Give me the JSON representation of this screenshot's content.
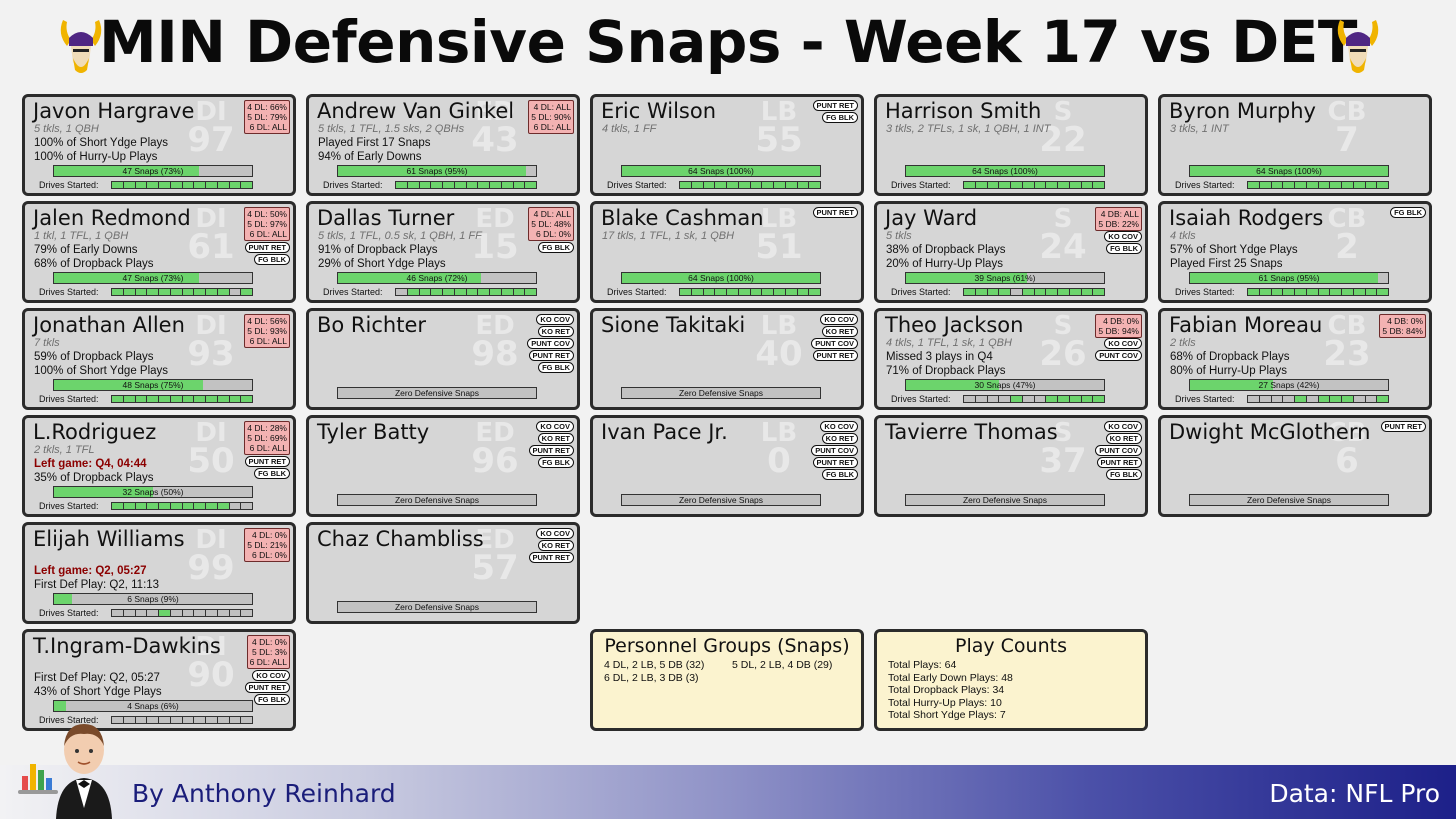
{
  "title": "MIN Defensive Snaps - Week 17 vs DET",
  "footer": {
    "author": "By Anthony Reinhard",
    "source": "Data: NFL Pro"
  },
  "icons": {
    "logo": "vikings-logo-icon",
    "mascot": "butler-chart-mascot-icon"
  },
  "colors": {
    "snap_fill": "#6cd46c",
    "pct_box": "#f3b2b2",
    "card_bg": "#d6d6d6",
    "info_bg": "#fbf3cf",
    "left_game": "#8b0000"
  },
  "players": [
    {
      "name": "Javon Hargrave",
      "pos": "DI",
      "num": "97",
      "stats": "5 tkls, 1 QBH",
      "line1": "100% of Short Ydge Plays",
      "line2": "100% of Hurry-Up Plays",
      "pct": "4 DL: 66%\n5 DL: 79%\n6 DL: ALL",
      "tags": [],
      "snaps": "47 Snaps (73%)",
      "frac": 0.73,
      "drives": [
        1,
        1,
        1,
        1,
        1,
        1,
        1,
        1,
        1,
        1,
        1,
        1
      ]
    },
    {
      "name": "Andrew Van Ginkel",
      "pos": "ED",
      "num": "43",
      "stats": "5 tkls, 1 TFL, 1.5 sks, 2 QBHs",
      "line1": "Played First 17 Snaps",
      "line2": "94% of Early Downs",
      "pct": "4 DL: ALL\n5 DL: 90%\n6 DL: ALL",
      "tags": [],
      "snaps": "61 Snaps (95%)",
      "frac": 0.95,
      "drives": [
        1,
        1,
        1,
        1,
        1,
        1,
        1,
        1,
        1,
        1,
        1,
        1
      ]
    },
    {
      "name": "Eric Wilson",
      "pos": "LB",
      "num": "55",
      "stats": "4 tkls, 1 FF",
      "line1": "",
      "line2": "",
      "pct": "",
      "tags": [
        "PUNT RET",
        "FG BLK"
      ],
      "snaps": "64 Snaps (100%)",
      "frac": 1,
      "drives": [
        1,
        1,
        1,
        1,
        1,
        1,
        1,
        1,
        1,
        1,
        1,
        1
      ]
    },
    {
      "name": "Harrison Smith",
      "pos": "S",
      "num": "22",
      "stats": "3 tkls, 2 TFLs, 1 sk, 1 QBH, 1 INT",
      "line1": "",
      "line2": "",
      "pct": "",
      "tags": [],
      "snaps": "64 Snaps (100%)",
      "frac": 1,
      "drives": [
        1,
        1,
        1,
        1,
        1,
        1,
        1,
        1,
        1,
        1,
        1,
        1
      ]
    },
    {
      "name": "Byron Murphy",
      "pos": "CB",
      "num": "7",
      "stats": "3 tkls, 1 INT",
      "line1": "",
      "line2": "",
      "pct": "",
      "tags": [],
      "snaps": "64 Snaps (100%)",
      "frac": 1,
      "drives": [
        1,
        1,
        1,
        1,
        1,
        1,
        1,
        1,
        1,
        1,
        1,
        1
      ]
    },
    {
      "name": "Jalen Redmond",
      "pos": "DI",
      "num": "61",
      "stats": "1 tkl, 1 TFL, 1 QBH",
      "line1": "79% of Early Downs",
      "line2": "68% of Dropback Plays",
      "pct": "4 DL: 50%\n5 DL: 97%\n6 DL: ALL",
      "tags": [
        "PUNT RET",
        "FG BLK"
      ],
      "snaps": "47 Snaps (73%)",
      "frac": 0.73,
      "drives": [
        1,
        1,
        1,
        1,
        1,
        1,
        1,
        1,
        1,
        1,
        0,
        1
      ]
    },
    {
      "name": "Dallas Turner",
      "pos": "ED",
      "num": "15",
      "stats": "5 tkls, 1 TFL, 0.5 sk, 1 QBH, 1 FF",
      "line1": "91% of Dropback Plays",
      "line2": "29% of Short Ydge Plays",
      "pct": "4 DL: ALL\n5 DL: 48%\n6 DL: 0%",
      "tags": [
        "FG BLK"
      ],
      "snaps": "46 Snaps (72%)",
      "frac": 0.72,
      "drives": [
        0,
        1,
        1,
        1,
        1,
        1,
        1,
        1,
        1,
        1,
        1,
        1
      ]
    },
    {
      "name": "Blake Cashman",
      "pos": "LB",
      "num": "51",
      "stats": "17 tkls, 1 TFL, 1 sk, 1 QBH",
      "line1": "",
      "line2": "",
      "pct": "",
      "tags": [
        "PUNT RET"
      ],
      "snaps": "64 Snaps (100%)",
      "frac": 1,
      "drives": [
        1,
        1,
        1,
        1,
        1,
        1,
        1,
        1,
        1,
        1,
        1,
        1
      ]
    },
    {
      "name": "Jay Ward",
      "pos": "S",
      "num": "24",
      "stats": "5 tkls",
      "line1": "38% of Dropback Plays",
      "line2": "20% of Hurry-Up Plays",
      "pct": "4 DB: ALL\n5 DB: 22%",
      "tags": [
        "KO COV",
        "FG BLK"
      ],
      "snaps": "39 Snaps (61%)",
      "frac": 0.61,
      "drives": [
        1,
        1,
        1,
        1,
        0,
        1,
        1,
        1,
        1,
        1,
        1,
        1
      ]
    },
    {
      "name": "Isaiah Rodgers",
      "pos": "CB",
      "num": "2",
      "stats": "4 tkls",
      "line1": "57% of Short Ydge Plays",
      "line2": "Played First 25 Snaps",
      "pct": "",
      "tags": [
        "FG BLK"
      ],
      "snaps": "61 Snaps (95%)",
      "frac": 0.95,
      "drives": [
        1,
        1,
        1,
        1,
        1,
        1,
        1,
        1,
        1,
        1,
        1,
        1
      ]
    },
    {
      "name": "Jonathan Allen",
      "pos": "DI",
      "num": "93",
      "stats": "7 tkls",
      "line1": "59% of Dropback Plays",
      "line2": "100% of Short Ydge Plays",
      "pct": "4 DL: 56%\n5 DL: 93%\n6 DL: ALL",
      "tags": [],
      "snaps": "48 Snaps (75%)",
      "frac": 0.75,
      "drives": [
        1,
        1,
        1,
        1,
        1,
        1,
        1,
        1,
        1,
        1,
        1,
        1
      ]
    },
    {
      "name": "Bo Richter",
      "pos": "ED",
      "num": "98",
      "stats": "",
      "line1": "",
      "line2": "",
      "pct": "",
      "tags": [
        "KO COV",
        "KO RET",
        "PUNT COV",
        "PUNT RET",
        "FG BLK"
      ],
      "snaps": "Zero Defensive Snaps",
      "frac": 0,
      "drives": []
    },
    {
      "name": "Sione Takitaki",
      "pos": "LB",
      "num": "40",
      "stats": "",
      "line1": "",
      "line2": "",
      "pct": "",
      "tags": [
        "KO COV",
        "KO RET",
        "PUNT COV",
        "PUNT RET"
      ],
      "snaps": "Zero Defensive Snaps",
      "frac": 0,
      "drives": []
    },
    {
      "name": "Theo Jackson",
      "pos": "S",
      "num": "26",
      "stats": "4 tkls, 1 TFL, 1 sk, 1 QBH",
      "line1": "Missed 3 plays in Q4",
      "line2": "71% of Dropback Plays",
      "pct": "4 DB: 0%\n5 DB: 94%",
      "tags": [
        "KO COV",
        "PUNT COV"
      ],
      "snaps": "30 Snaps (47%)",
      "frac": 0.47,
      "drives": [
        0,
        0,
        0,
        0,
        1,
        0,
        0,
        1,
        1,
        1,
        1,
        1
      ]
    },
    {
      "name": "Fabian Moreau",
      "pos": "CB",
      "num": "23",
      "stats": "2 tkls",
      "line1": "68% of Dropback Plays",
      "line2": "80% of Hurry-Up Plays",
      "pct": "4 DB: 0%\n5 DB: 84%",
      "tags": [],
      "snaps": "27 Snaps (42%)",
      "frac": 0.42,
      "drives": [
        0,
        0,
        0,
        0,
        1,
        0,
        1,
        1,
        1,
        0,
        0,
        1
      ]
    },
    {
      "name": "L.Rodriguez",
      "pos": "DI",
      "num": "50",
      "stats": "2 tkls, 1 TFL",
      "line1": "Left game: Q4, 04:44",
      "line1red": true,
      "line2": "35% of Dropback Plays",
      "pct": "4 DL: 28%\n5 DL: 69%\n6 DL: ALL",
      "tags": [
        "PUNT RET",
        "FG BLK"
      ],
      "snaps": "32 Snaps (50%)",
      "frac": 0.5,
      "drives": [
        1,
        1,
        1,
        1,
        1,
        1,
        1,
        1,
        1,
        1,
        0,
        0
      ]
    },
    {
      "name": "Tyler Batty",
      "pos": "ED",
      "num": "96",
      "stats": "",
      "line1": "",
      "line2": "",
      "pct": "",
      "tags": [
        "KO COV",
        "KO RET",
        "PUNT RET",
        "FG BLK"
      ],
      "snaps": "Zero Defensive Snaps",
      "frac": 0,
      "drives": []
    },
    {
      "name": "Ivan Pace Jr.",
      "pos": "LB",
      "num": "0",
      "stats": "",
      "line1": "",
      "line2": "",
      "pct": "",
      "tags": [
        "KO COV",
        "KO RET",
        "PUNT COV",
        "PUNT RET",
        "FG BLK"
      ],
      "snaps": "Zero Defensive Snaps",
      "frac": 0,
      "drives": []
    },
    {
      "name": "Tavierre Thomas",
      "pos": "S",
      "num": "37",
      "stats": "",
      "line1": "",
      "line2": "",
      "pct": "",
      "tags": [
        "KO COV",
        "KO RET",
        "PUNT COV",
        "PUNT RET",
        "FG BLK"
      ],
      "snaps": "Zero Defensive Snaps",
      "frac": 0,
      "drives": []
    },
    {
      "name": "Dwight McGlothern",
      "pos": "CB",
      "num": "6",
      "stats": "",
      "line1": "",
      "line2": "",
      "pct": "",
      "tags": [
        "PUNT RET"
      ],
      "snaps": "Zero Defensive Snaps",
      "frac": 0,
      "drives": []
    },
    {
      "name": "Elijah Williams",
      "pos": "DI",
      "num": "99",
      "stats": "",
      "line1": "Left game: Q2, 05:27",
      "line1red": true,
      "line2": "First Def Play: Q2, 11:13",
      "pct": "4 DL: 0%\n5 DL: 21%\n6 DL: 0%",
      "tags": [],
      "snaps": "6 Snaps (9%)",
      "frac": 0.09,
      "drives": [
        0,
        0,
        0,
        0,
        1,
        0,
        0,
        0,
        0,
        0,
        0,
        0
      ]
    },
    {
      "name": "Chaz Chambliss",
      "pos": "ED",
      "num": "57",
      "stats": "",
      "line1": "",
      "line2": "",
      "pct": "",
      "tags": [
        "KO COV",
        "KO RET",
        "PUNT RET"
      ],
      "snaps": "Zero Defensive Snaps",
      "frac": 0,
      "drives": []
    },
    {
      "name": "T.Ingram-Dawkins",
      "pos": "DI",
      "num": "90",
      "stats": "",
      "line1": "First Def Play: Q2, 05:27",
      "line2": "43% of Short Ydge Plays",
      "pct": "4 DL: 0%\n5 DL: 3%\n6 DL: ALL",
      "tags": [
        "KO COV",
        "PUNT RET",
        "FG BLK"
      ],
      "snaps": "4 Snaps (6%)",
      "frac": 0.06,
      "drives": [
        0,
        0,
        0,
        0,
        0,
        0,
        0,
        0,
        0,
        0,
        0,
        0
      ]
    }
  ],
  "drives_label": "Drives Started:",
  "personnel": {
    "title": "Personnel Groups (Snaps)",
    "items": [
      "4 DL, 2 LB, 5 DB (32)",
      "5 DL, 2 LB, 4 DB (29)",
      "6 DL, 2 LB, 3 DB (3)"
    ]
  },
  "play_counts": {
    "title": "Play Counts",
    "items": [
      "Total Plays: 64",
      "Total Early Down Plays: 48",
      "Total Dropback Plays: 34",
      "Total Hurry-Up Plays: 10",
      "Total Short Ydge Plays: 7"
    ]
  }
}
